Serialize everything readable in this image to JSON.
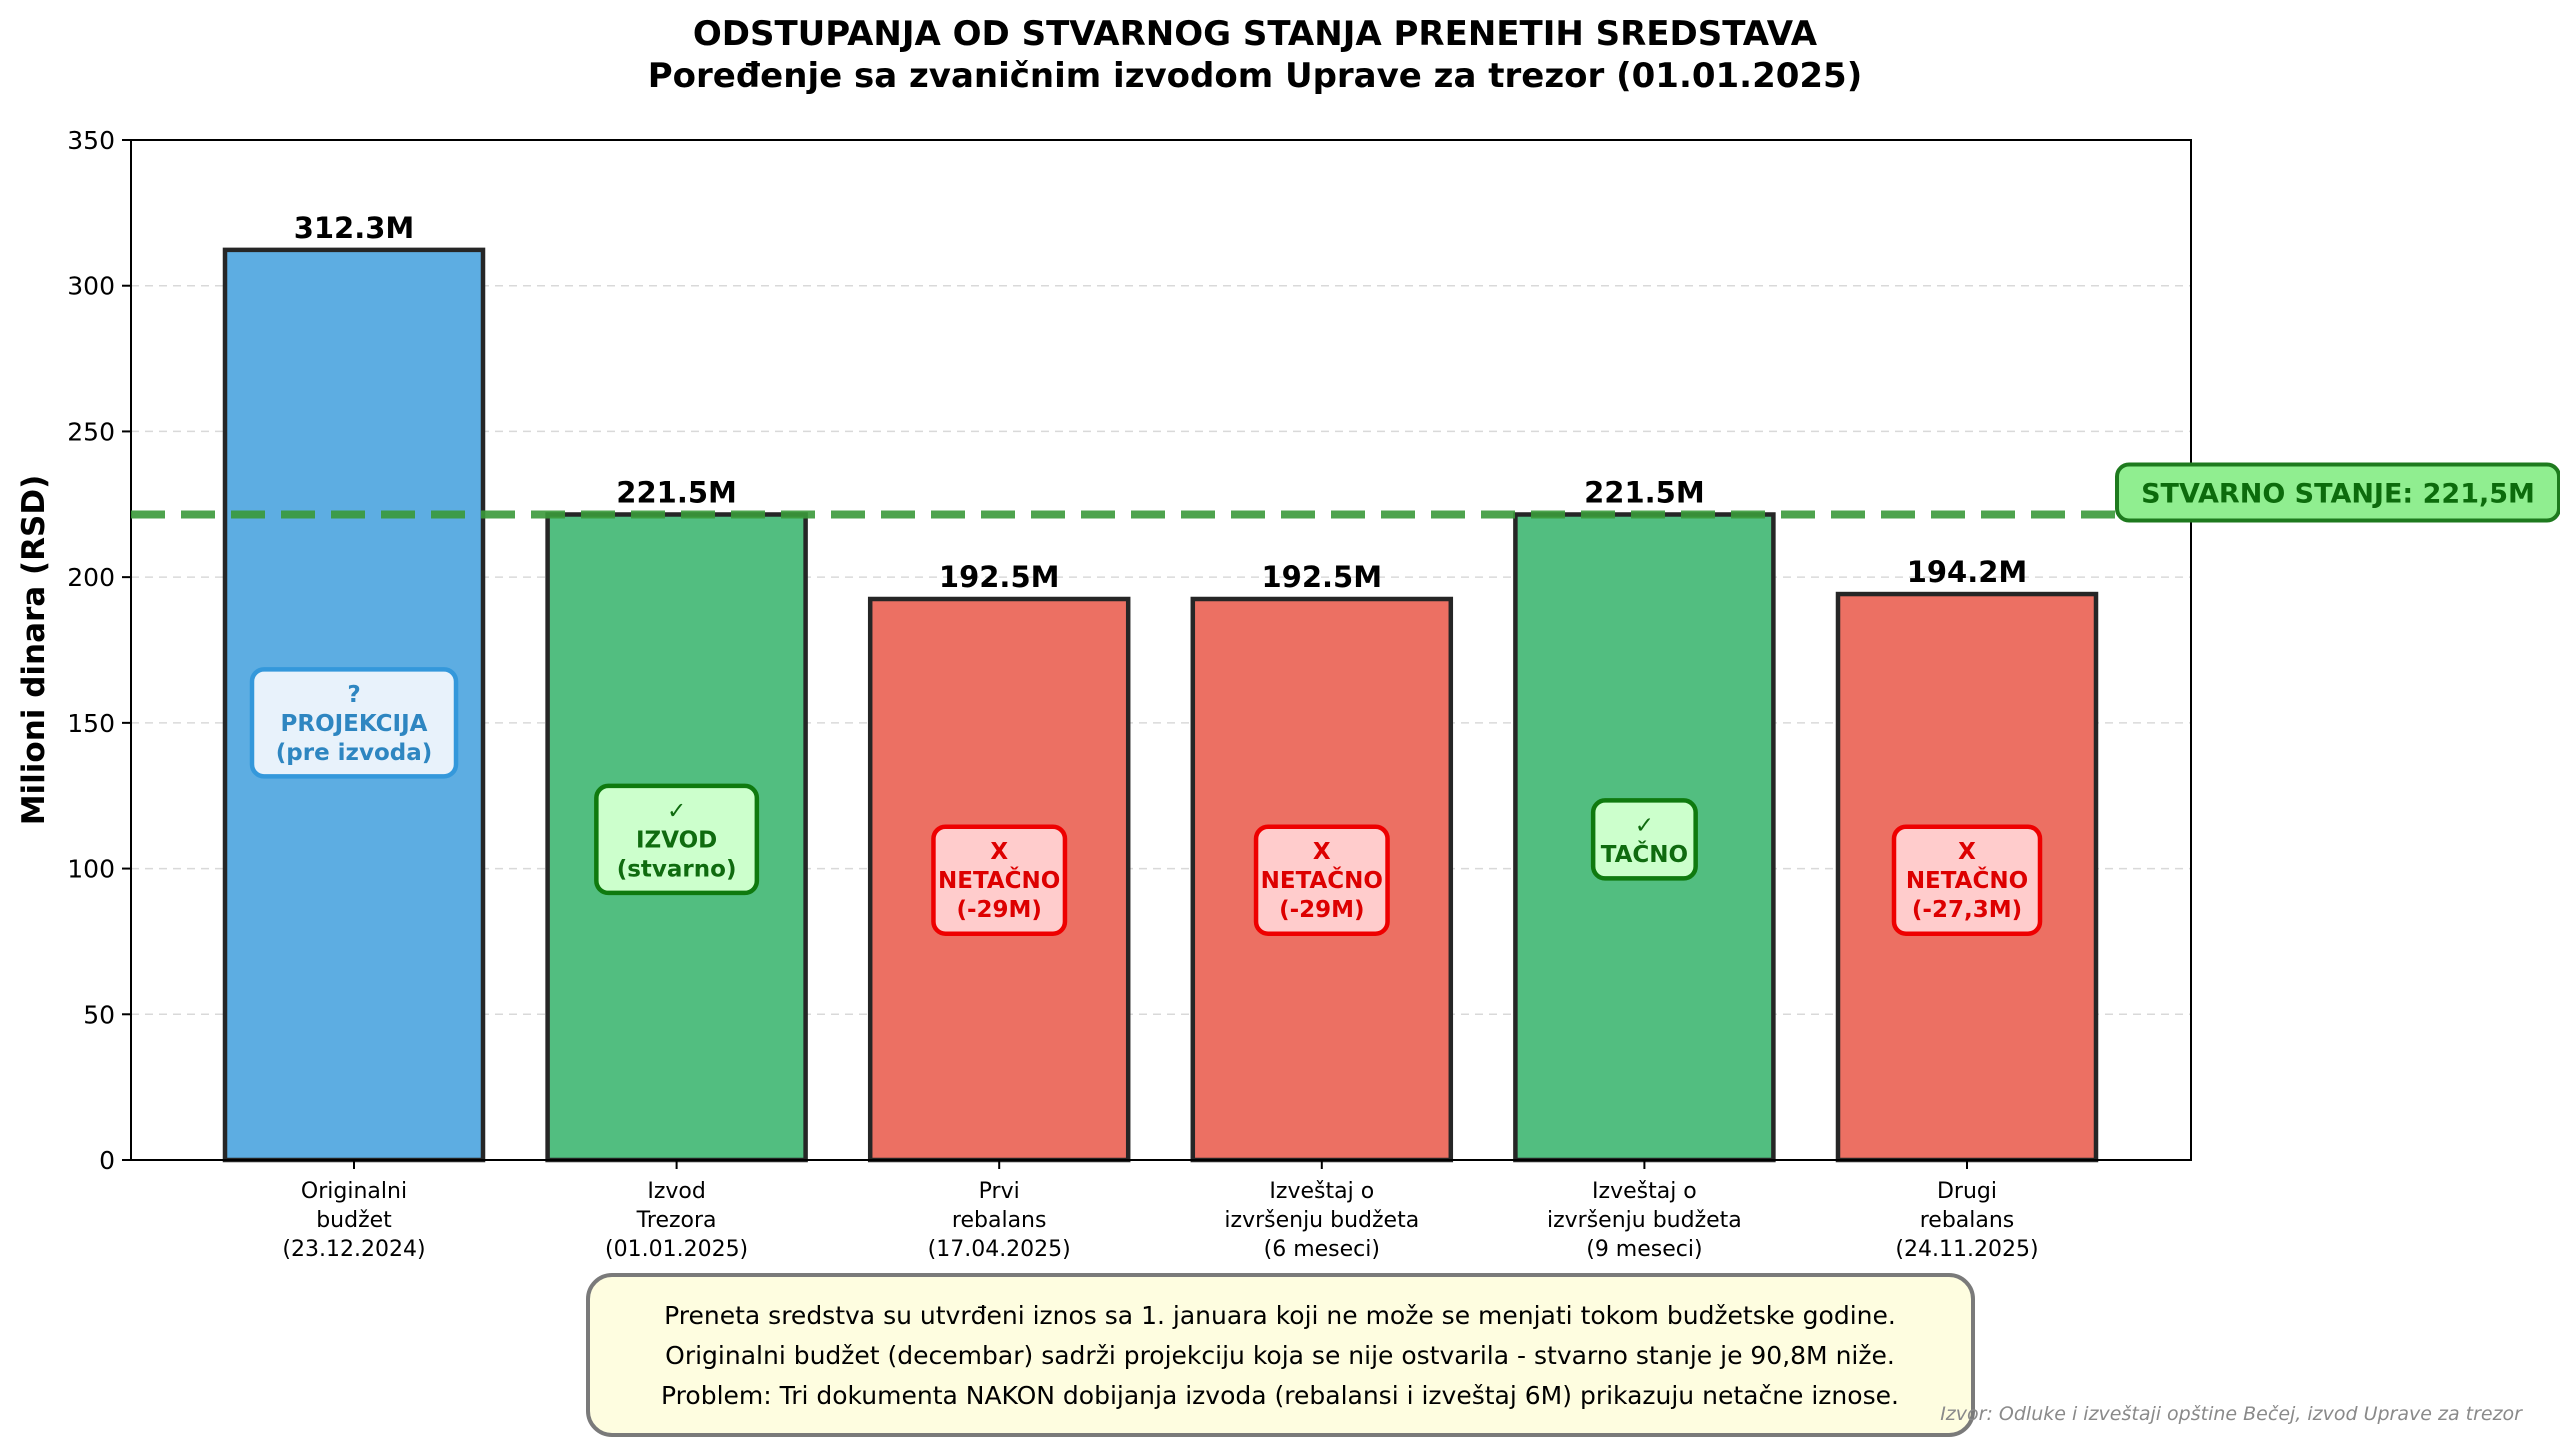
{
  "chart_data": {
    "type": "bar",
    "title": "ODSTUPANJA OD STVARNOG STANJA PRENETIH SREDSTAVA",
    "subtitle": "Poređenje sa zvaničnim izvodom Uprave za trezor (01.01.2025)",
    "ylabel": "Milioni dinara (RSD)",
    "xlabel": "",
    "ylim": [
      0,
      350
    ],
    "yticks": [
      0,
      50,
      100,
      150,
      200,
      250,
      300,
      350
    ],
    "grid": "horizontal-dashed",
    "categories": [
      [
        "Originalni",
        "budžet",
        "(23.12.2024)"
      ],
      [
        "Izvod",
        "Trezora",
        "(01.01.2025)"
      ],
      [
        "Prvi",
        "rebalans",
        "(17.04.2025)"
      ],
      [
        "Izveštaj o",
        "izvršenju budžeta",
        "(6 meseci)"
      ],
      [
        "Izveštaj o",
        "izvršenju budžeta",
        "(9 meseci)"
      ],
      [
        "Drugi",
        "rebalans",
        "(24.11.2025)"
      ]
    ],
    "values": [
      312.3,
      221.5,
      192.5,
      192.5,
      221.5,
      194.2
    ],
    "value_labels": [
      "312.3M",
      "221.5M",
      "192.5M",
      "192.5M",
      "221.5M",
      "194.2M"
    ],
    "bar_colors": [
      "#5dade2",
      "#52be80",
      "#ec7063",
      "#ec7063",
      "#52be80",
      "#ec7063"
    ],
    "badges": [
      {
        "lines": [
          "?",
          "PROJEKCIJA",
          "(pre izvoda)"
        ],
        "y": 150,
        "status": "projection"
      },
      {
        "lines": [
          "✓",
          "IZVOD",
          "(stvarno)"
        ],
        "y": 110,
        "status": "ok"
      },
      {
        "lines": [
          "X",
          "NETAČNO",
          "(-29M)"
        ],
        "y": 96,
        "status": "wrong"
      },
      {
        "lines": [
          "X",
          "NETAČNO",
          "(-29M)"
        ],
        "y": 96,
        "status": "wrong"
      },
      {
        "lines": [
          "✓",
          "TAČNO"
        ],
        "y": 110,
        "status": "ok"
      },
      {
        "lines": [
          "X",
          "NETAČNO",
          "(-27,3M)"
        ],
        "y": 96,
        "status": "wrong"
      }
    ],
    "reference_line": {
      "value": 221.5,
      "label": "STVARNO STANJE: 221,5M",
      "color": "#3a9a3a"
    },
    "note_lines": [
      "Preneta sredstva su utvrđeni iznos sa 1. januara koji ne može se menjati tokom budžetske godine.",
      "Originalni budžet (decembar) sadrži projekciju koja se nije ostvarila - stvarno stanje je 90,8M niže.",
      "Problem: Tri dokumenta NAKON dobijanja izvoda (rebalansi i izveštaj 6M) prikazuju netačne iznose."
    ],
    "source": "Izvor: Odluke i izveštaji opštine Bečej, izvod Uprave za trezor"
  }
}
